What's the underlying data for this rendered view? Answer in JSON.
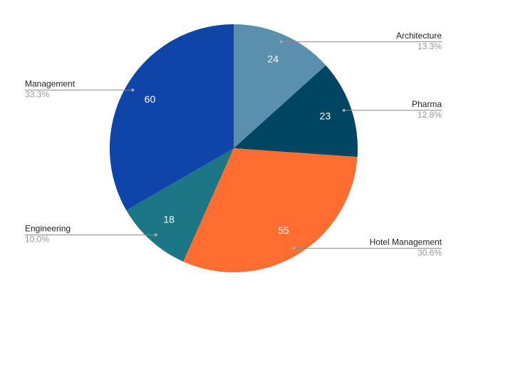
{
  "chart_data": {
    "type": "pie",
    "categories": [
      "Architecture",
      "Pharma",
      "Hotel Management",
      "Engineering",
      "Management"
    ],
    "values": [
      24,
      23,
      55,
      18,
      60
    ],
    "percent_labels": [
      "13.3%",
      "12.8%",
      "30.6%",
      "10.0%",
      "33.3%"
    ],
    "colors": [
      "#5a8fad",
      "#004561",
      "#ff6d31",
      "#1c7685",
      "#0f44a8"
    ]
  }
}
